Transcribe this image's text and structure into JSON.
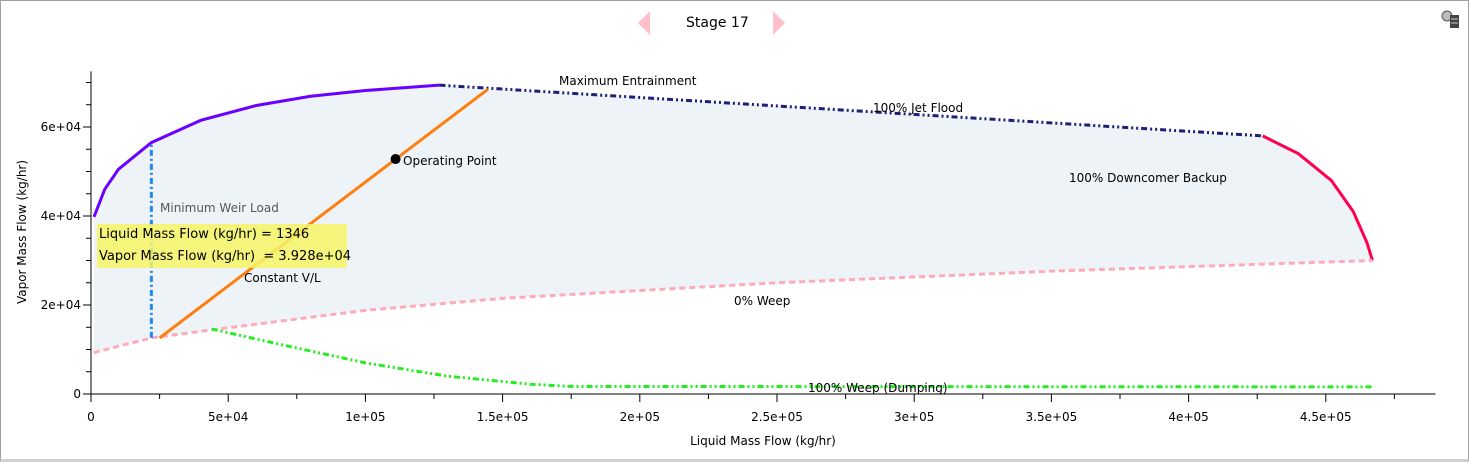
{
  "header": {
    "stage_label": "Stage 17",
    "prev_icon": "triangle-left-icon",
    "next_icon": "triangle-right-icon",
    "settings_icon": "magnifier-list-icon"
  },
  "tooltip": {
    "line1": "Liquid Mass Flow (kg/hr) = 1346",
    "line2": "Vapor Mass Flow (kg/hr)  = 3.928e+04"
  },
  "chart_data": {
    "type": "line",
    "xlabel": "Liquid Mass Flow (kg/hr)",
    "ylabel": "Vapor Mass Flow (kg/hr)",
    "xlim": [
      0,
      490000
    ],
    "ylim": [
      0,
      72500
    ],
    "xticks": [
      {
        "v": 50000,
        "label": "5e+04"
      },
      {
        "v": 100000,
        "label": "1e+05"
      },
      {
        "v": 150000,
        "label": "1.5e+05"
      },
      {
        "v": 200000,
        "label": "2e+05"
      },
      {
        "v": 250000,
        "label": "2.5e+05"
      },
      {
        "v": 300000,
        "label": "3e+05"
      },
      {
        "v": 350000,
        "label": "3.5e+05"
      },
      {
        "v": 400000,
        "label": "4e+05"
      },
      {
        "v": 450000,
        "label": "4.5e+05"
      }
    ],
    "yticks": [
      {
        "v": 0,
        "label": "0"
      },
      {
        "v": 20000,
        "label": "2e+04"
      },
      {
        "v": 40000,
        "label": "4e+04"
      },
      {
        "v": 60000,
        "label": "6e+04"
      }
    ],
    "x0_label": "0",
    "region_fill": "#eef3f8",
    "series": [
      {
        "name": "Maximum Entrainment",
        "color": "#6a00ff",
        "style": "solid",
        "points": [
          [
            1100,
            39800
          ],
          [
            5000,
            46000
          ],
          [
            10000,
            50500
          ],
          [
            22000,
            56500
          ],
          [
            40000,
            61500
          ],
          [
            60000,
            64800
          ],
          [
            80000,
            66900
          ],
          [
            100000,
            68200
          ],
          [
            127000,
            69400
          ]
        ]
      },
      {
        "name": "100% Jet Flood",
        "color": "#1f1f7a",
        "style": "dashdotdot",
        "points": [
          [
            127000,
            69400
          ],
          [
            427000,
            58000
          ]
        ]
      },
      {
        "name": "100% Downcomer Backup",
        "color": "#ff0050",
        "style": "solid",
        "points": [
          [
            427000,
            58000
          ],
          [
            440000,
            54000
          ],
          [
            452000,
            48000
          ],
          [
            460000,
            41000
          ],
          [
            465000,
            34000
          ],
          [
            467000,
            30000
          ]
        ]
      },
      {
        "name": "0% Weep",
        "color": "#ffaabb",
        "style": "dashed",
        "points": [
          [
            1000,
            9300
          ],
          [
            22000,
            12600
          ],
          [
            45000,
            14500
          ],
          [
            100000,
            18800
          ],
          [
            150000,
            21500
          ],
          [
            250000,
            25000
          ],
          [
            350000,
            27600
          ],
          [
            467000,
            30000
          ]
        ]
      },
      {
        "name": "100% Weep (Dumping)",
        "color": "#22ee22",
        "style": "dashdotdot",
        "points": [
          [
            44000,
            14600
          ],
          [
            70000,
            11000
          ],
          [
            100000,
            7000
          ],
          [
            130000,
            4000
          ],
          [
            160000,
            2200
          ],
          [
            175000,
            1700
          ],
          [
            467000,
            1600
          ]
        ]
      },
      {
        "name": "Minimum Weir Load",
        "color": "#2288ee",
        "style": "dashdot",
        "points": [
          [
            22000,
            12600
          ],
          [
            22000,
            56200
          ]
        ]
      },
      {
        "name": "Constant V/L",
        "color": "#ff7f0e",
        "style": "solid",
        "points": [
          [
            25000,
            12600
          ],
          [
            144700,
            68500
          ]
        ]
      }
    ],
    "operating_point": {
      "name": "Operating Point",
      "x": 111000,
      "y": 52800
    }
  }
}
